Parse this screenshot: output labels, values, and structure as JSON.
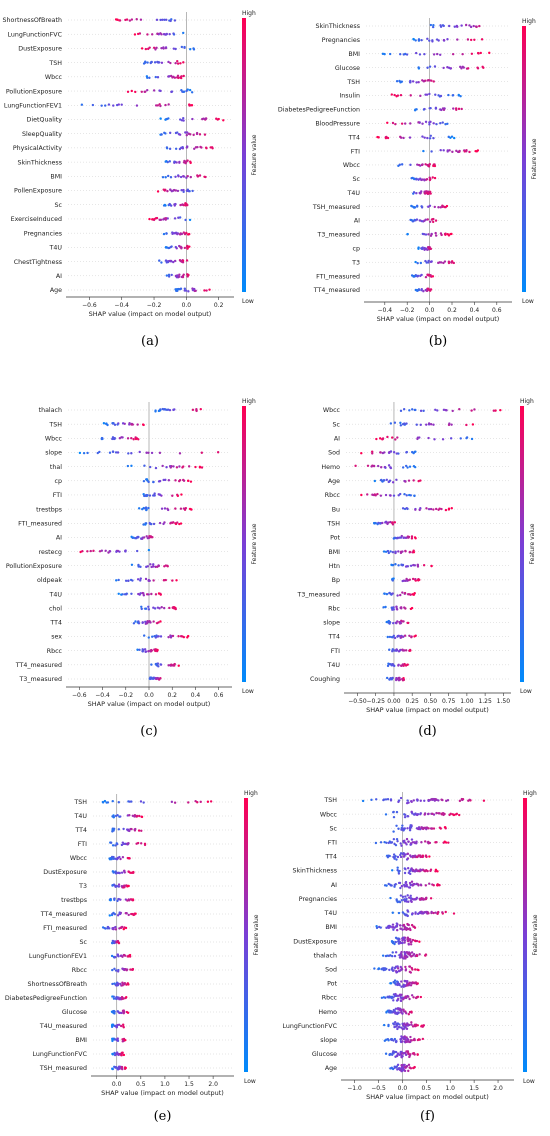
{
  "chart_data": [
    {
      "type": "scatter",
      "panel_label": "(a)",
      "xlabel": "SHAP value (impact on model output)",
      "xlim": [
        -0.72,
        0.27
      ],
      "xticks": [
        -0.6,
        -0.4,
        -0.2,
        0.0,
        0.2
      ],
      "xtick_labels": [
        "−0.6",
        "−0.4",
        "−0.2",
        "0.0",
        "0.2"
      ],
      "colorbar": {
        "high": "High",
        "low": "Low",
        "label": "Feature value"
      },
      "features": [
        {
          "name": "ShortnessOfBreath",
          "min": -0.45,
          "max": 0.02,
          "skew": 0.2
        },
        {
          "name": "LungFunctionFVC",
          "min": -0.33,
          "max": 0.02,
          "skew": 0.25
        },
        {
          "name": "DustExposure",
          "min": -0.28,
          "max": 0.05,
          "skew": 0.4
        },
        {
          "name": "TSH",
          "min": -0.27,
          "max": 0.0,
          "skew": 0.5
        },
        {
          "name": "Wbcc",
          "min": -0.25,
          "max": 0.0,
          "skew": 0.5
        },
        {
          "name": "PollutionExposure",
          "min": -0.37,
          "max": 0.04,
          "skew": 0.3
        },
        {
          "name": "LungFunctionFEV1",
          "min": -0.66,
          "max": 0.05,
          "skew": 0.5
        },
        {
          "name": "DietQuality",
          "min": -0.16,
          "max": 0.23,
          "skew": 0.6
        },
        {
          "name": "SleepQuality",
          "min": -0.17,
          "max": 0.15,
          "skew": 0.5
        },
        {
          "name": "PhysicalActivity",
          "min": -0.15,
          "max": 0.17,
          "skew": 0.5
        },
        {
          "name": "SkinThickness",
          "min": -0.14,
          "max": 0.03,
          "skew": 0.5
        },
        {
          "name": "BMI",
          "min": -0.17,
          "max": 0.13,
          "skew": 0.5
        },
        {
          "name": "PollenExposure",
          "min": -0.2,
          "max": 0.09,
          "skew": 0.4
        },
        {
          "name": "Sc",
          "min": -0.14,
          "max": 0.02,
          "skew": 0.5
        },
        {
          "name": "ExerciseInduced",
          "min": -0.23,
          "max": 0.03,
          "skew": 0.4
        },
        {
          "name": "Pregnancies",
          "min": -0.14,
          "max": 0.03,
          "skew": 0.5
        },
        {
          "name": "T4U",
          "min": -0.13,
          "max": 0.02,
          "skew": 0.5
        },
        {
          "name": "ChestTightness",
          "min": -0.2,
          "max": 0.02,
          "skew": 0.5
        },
        {
          "name": "AI",
          "min": -0.13,
          "max": 0.02,
          "skew": 0.5
        },
        {
          "name": "Age",
          "min": -0.08,
          "max": 0.15,
          "skew": 0.5
        }
      ]
    },
    {
      "type": "scatter",
      "panel_label": "(b)",
      "xlabel": "SHAP value (impact on model output)",
      "xlim": [
        -0.55,
        0.7
      ],
      "xticks": [
        -0.4,
        -0.2,
        0.0,
        0.2,
        0.4,
        0.6
      ],
      "xtick_labels": [
        "−0.4",
        "−0.2",
        "0.0",
        "0.2",
        "0.4",
        "0.6"
      ],
      "colorbar": {
        "high": "High",
        "low": "Low",
        "label": "Feature value"
      },
      "features": [
        {
          "name": "SkinThickness",
          "min": -0.05,
          "max": 0.62,
          "skew": 0.7
        },
        {
          "name": "Pregnancies",
          "min": -0.17,
          "max": 0.48,
          "skew": 0.6
        },
        {
          "name": "BMI",
          "min": -0.42,
          "max": 0.54,
          "skew": 0.5
        },
        {
          "name": "Glucose",
          "min": -0.12,
          "max": 0.5,
          "skew": 0.6
        },
        {
          "name": "TSH",
          "min": -0.32,
          "max": 0.07,
          "skew": 0.5
        },
        {
          "name": "Insulin",
          "min": -0.36,
          "max": 0.3,
          "skew": 0.4
        },
        {
          "name": "DiabetesPedigreeFunction",
          "min": -0.16,
          "max": 0.36,
          "skew": 0.6
        },
        {
          "name": "BloodPressure",
          "min": -0.4,
          "max": 0.28,
          "skew": 0.4
        },
        {
          "name": "TT4",
          "min": -0.5,
          "max": 0.22,
          "skew": 0.4
        },
        {
          "name": "FTI",
          "min": -0.1,
          "max": 0.44,
          "skew": 0.6
        },
        {
          "name": "Wbcc",
          "min": -0.32,
          "max": 0.07,
          "skew": 0.5
        },
        {
          "name": "Sc",
          "min": -0.17,
          "max": 0.05,
          "skew": 0.5
        },
        {
          "name": "T4U",
          "min": -0.18,
          "max": 0.02,
          "skew": 0.5
        },
        {
          "name": "TSH_measured",
          "min": -0.17,
          "max": 0.18,
          "skew": 0.5
        },
        {
          "name": "AI",
          "min": -0.2,
          "max": 0.08,
          "skew": 0.5
        },
        {
          "name": "T3_measured",
          "min": -0.2,
          "max": 0.2,
          "skew": 0.5
        },
        {
          "name": "cp",
          "min": -0.1,
          "max": 0.03,
          "skew": 0.5
        },
        {
          "name": "T3",
          "min": -0.13,
          "max": 0.25,
          "skew": 0.5
        },
        {
          "name": "FTI_measured",
          "min": -0.16,
          "max": 0.03,
          "skew": 0.5
        },
        {
          "name": "TT4_measured",
          "min": -0.13,
          "max": 0.02,
          "skew": 0.5
        }
      ]
    },
    {
      "type": "scatter",
      "panel_label": "(c)",
      "xlabel": "SHAP value (impact on model output)",
      "xlim": [
        -0.68,
        0.68
      ],
      "xticks": [
        -0.6,
        -0.4,
        -0.2,
        0.0,
        0.2,
        0.4,
        0.6
      ],
      "xtick_labels": [
        "−0.6",
        "−0.4",
        "−0.2",
        "0.0",
        "0.2",
        "0.4",
        "0.6"
      ],
      "colorbar": {
        "high": "High",
        "low": "Low",
        "label": "Feature value"
      },
      "features": [
        {
          "name": "thalach",
          "min": 0.05,
          "max": 0.48,
          "skew": 0.6
        },
        {
          "name": "TSH",
          "min": -0.4,
          "max": 0.0,
          "skew": 0.5
        },
        {
          "name": "Wbcc",
          "min": -0.42,
          "max": -0.08,
          "skew": 0.5
        },
        {
          "name": "slope",
          "min": -0.6,
          "max": 0.62,
          "skew": 0.5
        },
        {
          "name": "thal",
          "min": -0.2,
          "max": 0.47,
          "skew": 0.6
        },
        {
          "name": "cp",
          "min": -0.05,
          "max": 0.38,
          "skew": 0.6
        },
        {
          "name": "FTI",
          "min": -0.08,
          "max": 0.3,
          "skew": 0.5
        },
        {
          "name": "trestbps",
          "min": -0.1,
          "max": 0.37,
          "skew": 0.5
        },
        {
          "name": "FTI_measured",
          "min": -0.07,
          "max": 0.28,
          "skew": 0.5
        },
        {
          "name": "AI",
          "min": -0.15,
          "max": 0.07,
          "skew": 0.5
        },
        {
          "name": "restecg",
          "min": -0.6,
          "max": 0.02,
          "skew": 0.4
        },
        {
          "name": "PollutionExposure",
          "min": -0.15,
          "max": 0.2,
          "skew": 0.5
        },
        {
          "name": "oldpeak",
          "min": -0.3,
          "max": 0.25,
          "skew": 0.5
        },
        {
          "name": "T4U",
          "min": -0.27,
          "max": 0.12,
          "skew": 0.5
        },
        {
          "name": "chol",
          "min": -0.1,
          "max": 0.25,
          "skew": 0.5
        },
        {
          "name": "TT4",
          "min": -0.15,
          "max": 0.1,
          "skew": 0.5
        },
        {
          "name": "sex",
          "min": -0.05,
          "max": 0.35,
          "skew": 0.5
        },
        {
          "name": "Rbcc",
          "min": -0.1,
          "max": 0.08,
          "skew": 0.5
        },
        {
          "name": "TT4_measured",
          "min": 0.0,
          "max": 0.28,
          "skew": 0.5
        },
        {
          "name": "T3_measured",
          "min": 0.0,
          "max": 0.12,
          "skew": 0.5
        }
      ]
    },
    {
      "type": "scatter",
      "panel_label": "(d)",
      "xlabel": "SHAP value (impact on model output)",
      "xlim": [
        -0.63,
        1.55
      ],
      "xticks": [
        -0.5,
        -0.25,
        0.0,
        0.25,
        0.5,
        0.75,
        1.0,
        1.25,
        1.5
      ],
      "xtick_labels": [
        "−0.50",
        "−0.25",
        "0.00",
        "0.25",
        "0.50",
        "0.75",
        "1.00",
        "1.25",
        "1.50"
      ],
      "colorbar": {
        "high": "High",
        "low": "Low",
        "label": "Feature value"
      },
      "features": [
        {
          "name": "Wbcc",
          "min": -0.05,
          "max": 1.48,
          "skew": 0.6
        },
        {
          "name": "Sc",
          "min": -0.1,
          "max": 1.2,
          "skew": 0.6
        },
        {
          "name": "AI",
          "min": -0.3,
          "max": 1.2,
          "skew": 0.4
        },
        {
          "name": "Sod",
          "min": -0.48,
          "max": 0.3,
          "skew": 0.3
        },
        {
          "name": "Hemo",
          "min": -0.58,
          "max": 0.3,
          "skew": 0.3
        },
        {
          "name": "Age",
          "min": -0.28,
          "max": 0.38,
          "skew": 0.5
        },
        {
          "name": "Rbcc",
          "min": -0.5,
          "max": 0.3,
          "skew": 0.4
        },
        {
          "name": "Bu",
          "min": -0.1,
          "max": 0.8,
          "skew": 0.5
        },
        {
          "name": "TSH",
          "min": -0.3,
          "max": 0.05,
          "skew": 0.5
        },
        {
          "name": "Pot",
          "min": -0.05,
          "max": 0.3,
          "skew": 0.5
        },
        {
          "name": "BMI",
          "min": -0.15,
          "max": 0.3,
          "skew": 0.5
        },
        {
          "name": "Htn",
          "min": -0.05,
          "max": 0.55,
          "skew": 0.5
        },
        {
          "name": "Bp",
          "min": -0.05,
          "max": 0.35,
          "skew": 0.5
        },
        {
          "name": "T3_measured",
          "min": -0.15,
          "max": 0.3,
          "skew": 0.5
        },
        {
          "name": "Rbc",
          "min": -0.15,
          "max": 0.25,
          "skew": 0.5
        },
        {
          "name": "slope",
          "min": -0.1,
          "max": 0.2,
          "skew": 0.5
        },
        {
          "name": "TT4",
          "min": -0.1,
          "max": 0.3,
          "skew": 0.5
        },
        {
          "name": "FTI",
          "min": -0.1,
          "max": 0.25,
          "skew": 0.5
        },
        {
          "name": "T4U",
          "min": -0.1,
          "max": 0.2,
          "skew": 0.5
        },
        {
          "name": "Coughing",
          "min": -0.1,
          "max": 0.15,
          "skew": 0.5
        }
      ]
    },
    {
      "type": "scatter",
      "panel_label": "(e)",
      "xlabel": "SHAP value (impact on model output)",
      "xlim": [
        -0.45,
        2.35
      ],
      "xticks": [
        0.0,
        0.5,
        1.0,
        1.5,
        2.0
      ],
      "xtick_labels": [
        "0.0",
        "0.5",
        "1.0",
        "1.5",
        "2.0"
      ],
      "colorbar": {
        "high": "High",
        "low": "Low",
        "label": "Feature value"
      },
      "features": [
        {
          "name": "TSH",
          "min": -0.3,
          "max": 2.15,
          "skew": 0.8
        },
        {
          "name": "T4U",
          "min": -0.1,
          "max": 0.55,
          "skew": 0.5
        },
        {
          "name": "TT4",
          "min": -0.15,
          "max": 0.6,
          "skew": 0.5
        },
        {
          "name": "FTI",
          "min": -0.2,
          "max": 0.65,
          "skew": 0.5
        },
        {
          "name": "Wbcc",
          "min": -0.15,
          "max": 0.3,
          "skew": 0.5
        },
        {
          "name": "DustExposure",
          "min": -0.15,
          "max": 0.35,
          "skew": 0.5
        },
        {
          "name": "T3",
          "min": -0.15,
          "max": 0.25,
          "skew": 0.5
        },
        {
          "name": "trestbps",
          "min": -0.15,
          "max": 0.4,
          "skew": 0.5
        },
        {
          "name": "TT4_measured",
          "min": -0.15,
          "max": 0.4,
          "skew": 0.5
        },
        {
          "name": "FTI_measured",
          "min": -0.3,
          "max": 0.2,
          "skew": 0.5
        },
        {
          "name": "Sc",
          "min": -0.1,
          "max": 0.05,
          "skew": 0.5
        },
        {
          "name": "LungFunctionFEV1",
          "min": -0.15,
          "max": 0.3,
          "skew": 0.5
        },
        {
          "name": "Rbcc",
          "min": -0.1,
          "max": 0.35,
          "skew": 0.5
        },
        {
          "name": "ShortnessOfBreath",
          "min": -0.1,
          "max": 0.25,
          "skew": 0.5
        },
        {
          "name": "DiabetesPedigreeFunction",
          "min": -0.1,
          "max": 0.2,
          "skew": 0.5
        },
        {
          "name": "Glucose",
          "min": -0.1,
          "max": 0.25,
          "skew": 0.5
        },
        {
          "name": "T4U_measured",
          "min": -0.1,
          "max": 0.15,
          "skew": 0.5
        },
        {
          "name": "BMI",
          "min": -0.1,
          "max": 0.2,
          "skew": 0.5
        },
        {
          "name": "LungFunctionFVC",
          "min": -0.1,
          "max": 0.15,
          "skew": 0.5
        },
        {
          "name": "TSH_measured",
          "min": -0.1,
          "max": 0.2,
          "skew": 0.5
        }
      ]
    },
    {
      "type": "scatter",
      "panel_label": "(f)",
      "xlabel": "SHAP value (impact on model output)",
      "xlim": [
        -1.2,
        2.25
      ],
      "xticks": [
        -1.0,
        -0.5,
        0.0,
        0.5,
        1.0,
        1.5,
        2.0
      ],
      "xtick_labels": [
        "−1.0",
        "−0.5",
        "0.0",
        "0.5",
        "1.0",
        "1.5",
        "2.0"
      ],
      "colorbar": {
        "high": "High",
        "low": "Low",
        "label": "Feature value"
      },
      "features": [
        {
          "name": "TSH",
          "min": -1.1,
          "max": 2.1,
          "skew": 0.7
        },
        {
          "name": "Wbcc",
          "min": -0.5,
          "max": 1.3,
          "skew": 0.6
        },
        {
          "name": "Sc",
          "min": -0.3,
          "max": 1.0,
          "skew": 0.6
        },
        {
          "name": "FTI",
          "min": -0.6,
          "max": 1.0,
          "skew": 0.5
        },
        {
          "name": "TT4",
          "min": -0.4,
          "max": 0.6,
          "skew": 0.5
        },
        {
          "name": "SkinThickness",
          "min": -0.3,
          "max": 0.8,
          "skew": 0.5
        },
        {
          "name": "AI",
          "min": -0.5,
          "max": 0.9,
          "skew": 0.5
        },
        {
          "name": "Pregnancies",
          "min": -0.3,
          "max": 0.8,
          "skew": 0.5
        },
        {
          "name": "T4U",
          "min": -0.3,
          "max": 1.1,
          "skew": 0.5
        },
        {
          "name": "BMI",
          "min": -0.7,
          "max": 0.5,
          "skew": 0.5
        },
        {
          "name": "DustExposure",
          "min": -0.3,
          "max": 0.4,
          "skew": 0.5
        },
        {
          "name": "thalach",
          "min": -0.5,
          "max": 0.6,
          "skew": 0.5
        },
        {
          "name": "Sod",
          "min": -0.6,
          "max": 0.4,
          "skew": 0.5
        },
        {
          "name": "Pot",
          "min": -0.3,
          "max": 0.4,
          "skew": 0.5
        },
        {
          "name": "Rbcc",
          "min": -0.5,
          "max": 0.5,
          "skew": 0.5
        },
        {
          "name": "Hemo",
          "min": -0.4,
          "max": 0.3,
          "skew": 0.5
        },
        {
          "name": "LungFunctionFVC",
          "min": -0.4,
          "max": 0.5,
          "skew": 0.5
        },
        {
          "name": "slope",
          "min": -0.4,
          "max": 0.5,
          "skew": 0.5
        },
        {
          "name": "Glucose",
          "min": -0.4,
          "max": 0.4,
          "skew": 0.5
        },
        {
          "name": "Age",
          "min": -0.3,
          "max": 0.3,
          "skew": 0.5
        }
      ]
    }
  ],
  "colors": {
    "high": "#ff0052",
    "low": "#008bfb",
    "axis": "#999999"
  }
}
